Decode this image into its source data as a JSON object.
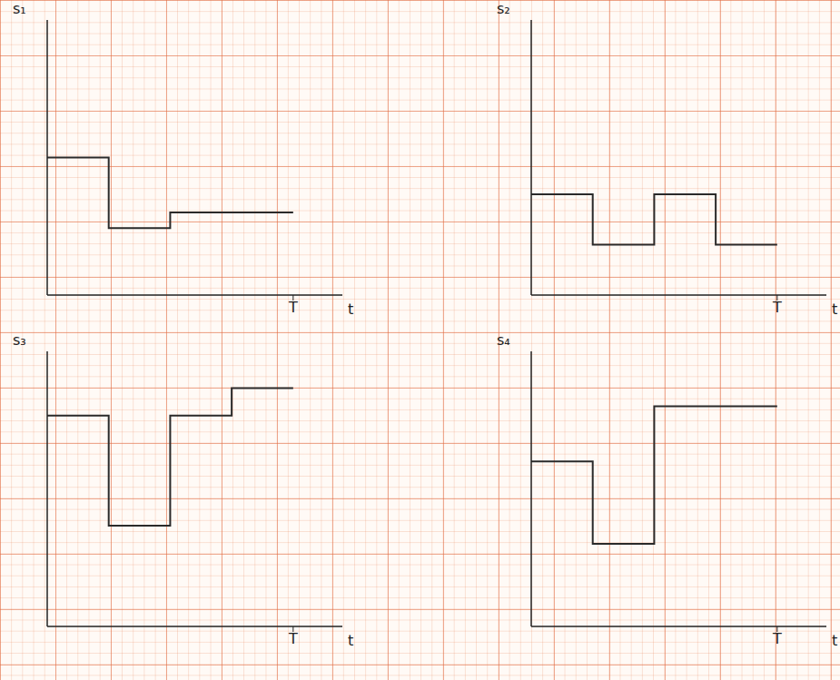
{
  "chart_data": [
    {
      "type": "step",
      "y_label": "s₁",
      "x_label": "t",
      "x": [
        0,
        1,
        2,
        4
      ],
      "values": [
        15,
        7.3,
        9,
        9
      ],
      "xlim": [
        0,
        4.8
      ],
      "ylim": [
        0,
        30
      ],
      "xticks": [
        {
          "value": 4,
          "label": "T"
        }
      ],
      "tick_labels": "x",
      "color": "#2a2a2a"
    },
    {
      "type": "step",
      "y_label": "s₂",
      "x_label": "t",
      "x": [
        0,
        1,
        2,
        3,
        4
      ],
      "values": [
        11,
        5.5,
        11,
        5.5,
        5.5
      ],
      "xlim": [
        0,
        4.8
      ],
      "ylim": [
        0,
        30
      ],
      "xticks": [
        {
          "value": 4,
          "label": "T"
        }
      ],
      "tick_labels": "x",
      "color": "#2a2a2a"
    },
    {
      "type": "step",
      "y_label": "s₃",
      "x_label": "t",
      "x": [
        0,
        1,
        2,
        3,
        4
      ],
      "values": [
        23,
        11,
        23,
        26,
        26
      ],
      "xlim": [
        0,
        4.8
      ],
      "ylim": [
        0,
        30
      ],
      "xticks": [
        {
          "value": 4,
          "label": "T"
        }
      ],
      "tick_labels": "x",
      "color": "#2a2a2a"
    },
    {
      "type": "step",
      "y_label": "s₄",
      "x_label": "t",
      "x": [
        0,
        1,
        2,
        4
      ],
      "values": [
        18,
        9,
        24,
        24
      ],
      "xlim": [
        0,
        4.8
      ],
      "ylim": [
        0,
        30
      ],
      "xticks": [
        {
          "value": 4,
          "label": "T"
        }
      ],
      "tick_labels": "x",
      "color": "#2a2a2a"
    }
  ]
}
